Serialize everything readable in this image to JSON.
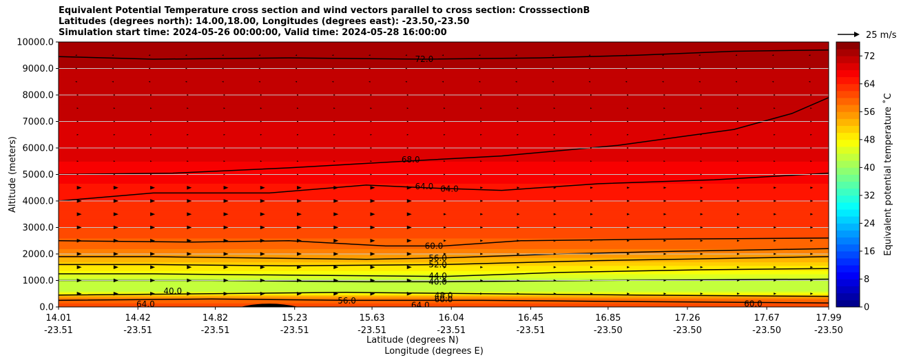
{
  "title": {
    "line1": "Equivalent Potential Temperature cross section and wind vectors parallel to cross section: CrosssectionB",
    "line2": "Latitudes (degrees north): 14.00,18.00, Longitudes (degrees east): -23.50,-23.50",
    "line3": "Simulation start time: 2024-05-26 00:00:00, Valid time: 2024-05-28 16:00:00"
  },
  "chart_data": {
    "type": "heatmap",
    "description_type": "filled contour cross section with wind vectors",
    "ylabel": "Altitude (meters)",
    "xlabel_lat": "Latitude (degrees N)",
    "xlabel_lon": "Longitude (degrees E)",
    "ylim": [
      0,
      10000
    ],
    "xlim": [
      14.01,
      17.99
    ],
    "yticks": [
      "0.0",
      "1000.0",
      "2000.0",
      "3000.0",
      "4000.0",
      "5000.0",
      "6000.0",
      "7000.0",
      "8000.0",
      "9000.0",
      "10000.0"
    ],
    "ytick_values": [
      0,
      1000,
      2000,
      3000,
      4000,
      5000,
      6000,
      7000,
      8000,
      9000,
      10000
    ],
    "xtick_values": [
      14.01,
      14.42,
      14.82,
      15.23,
      15.63,
      16.04,
      16.45,
      16.85,
      17.26,
      17.67,
      17.99
    ],
    "xticks_lat": [
      "14.01",
      "14.42",
      "14.82",
      "15.23",
      "15.63",
      "16.04",
      "16.45",
      "16.85",
      "17.26",
      "17.67",
      "17.99"
    ],
    "xticks_lon": [
      "-23.51",
      "-23.51",
      "-23.51",
      "-23.51",
      "-23.51",
      "-23.51",
      "-23.51",
      "-23.50",
      "-23.50",
      "-23.50",
      "-23.50"
    ],
    "grid": "horizontal",
    "colorbar": {
      "label": "Equivalent potential temperature ˚C",
      "range": [
        0,
        76
      ],
      "tick_values": [
        0,
        8,
        16,
        24,
        32,
        40,
        48,
        56,
        64,
        72
      ],
      "ticks": [
        "0",
        "8",
        "16",
        "24",
        "32",
        "40",
        "48",
        "56",
        "64",
        "72"
      ],
      "colormap": "jet"
    },
    "quiver_key": "25 m/s",
    "theta_e_profile": [
      {
        "z": 0,
        "value": 62
      },
      {
        "z": 300,
        "value": 58
      },
      {
        "z": 600,
        "value": 44
      },
      {
        "z": 1000,
        "value": 42
      },
      {
        "z": 1300,
        "value": 47
      },
      {
        "z": 1700,
        "value": 52
      },
      {
        "z": 2200,
        "value": 58
      },
      {
        "z": 3000,
        "value": 62
      },
      {
        "z": 4000,
        "value": 64
      },
      {
        "z": 5000,
        "value": 67
      },
      {
        "z": 6000,
        "value": 69
      },
      {
        "z": 7000,
        "value": 70
      },
      {
        "z": 8000,
        "value": 70
      },
      {
        "z": 9000,
        "value": 72
      },
      {
        "z": 10000,
        "value": 74
      }
    ],
    "contours": [
      {
        "label": "72.0",
        "points": [
          [
            14.01,
            9450
          ],
          [
            14.5,
            9350
          ],
          [
            15.2,
            9400
          ],
          [
            15.9,
            9350
          ],
          [
            16.5,
            9400
          ],
          [
            17.0,
            9500
          ],
          [
            17.5,
            9650
          ],
          [
            17.99,
            9700
          ]
        ]
      },
      {
        "label": "68.0",
        "points": [
          [
            14.01,
            5000
          ],
          [
            14.6,
            5050
          ],
          [
            15.2,
            5250
          ],
          [
            15.8,
            5500
          ],
          [
            16.3,
            5700
          ],
          [
            16.9,
            6100
          ],
          [
            17.5,
            6700
          ],
          [
            17.8,
            7300
          ],
          [
            17.99,
            7900
          ]
        ]
      },
      {
        "label": "64.0",
        "points": [
          [
            14.01,
            4000
          ],
          [
            14.5,
            4300
          ],
          [
            15.1,
            4300
          ],
          [
            15.6,
            4600
          ],
          [
            15.9,
            4500
          ],
          [
            16.3,
            4400
          ],
          [
            16.8,
            4650
          ],
          [
            17.4,
            4800
          ],
          [
            17.99,
            5050
          ]
        ]
      },
      {
        "label": "60.0",
        "points": [
          [
            14.01,
            2500
          ],
          [
            14.7,
            2450
          ],
          [
            15.2,
            2500
          ],
          [
            15.7,
            2300
          ],
          [
            16.0,
            2300
          ],
          [
            16.4,
            2500
          ],
          [
            17.0,
            2550
          ],
          [
            17.99,
            2600
          ]
        ]
      },
      {
        "label": "56.0",
        "points": [
          [
            14.01,
            1900
          ],
          [
            14.5,
            1900
          ],
          [
            15.0,
            1850
          ],
          [
            15.6,
            1800
          ],
          [
            16.0,
            1850
          ],
          [
            16.6,
            2000
          ],
          [
            17.2,
            2100
          ],
          [
            17.99,
            2200
          ]
        ]
      },
      {
        "label": "52.0",
        "points": [
          [
            14.01,
            1600
          ],
          [
            14.5,
            1600
          ],
          [
            15.2,
            1550
          ],
          [
            16.0,
            1600
          ],
          [
            16.8,
            1750
          ],
          [
            17.99,
            1900
          ]
        ]
      },
      {
        "label": "44.0",
        "points": [
          [
            14.01,
            1250
          ],
          [
            14.5,
            1250
          ],
          [
            15.2,
            1200
          ],
          [
            16.0,
            1150
          ],
          [
            16.6,
            1300
          ],
          [
            17.3,
            1400
          ],
          [
            17.99,
            1450
          ]
        ]
      },
      {
        "label": "40.0",
        "points": [
          [
            14.01,
            1000
          ],
          [
            14.8,
            1000
          ],
          [
            15.6,
            950
          ],
          [
            16.0,
            950
          ],
          [
            16.8,
            1000
          ],
          [
            17.99,
            1050
          ]
        ]
      },
      {
        "label": "48.0",
        "points": [
          [
            14.01,
            450
          ],
          [
            14.8,
            500
          ],
          [
            15.5,
            550
          ],
          [
            16.2,
            500
          ],
          [
            17.0,
            450
          ],
          [
            17.99,
            400
          ]
        ]
      },
      {
        "label": "60.0",
        "points": [
          [
            14.01,
            250
          ],
          [
            14.8,
            300
          ],
          [
            15.5,
            250
          ],
          [
            16.2,
            250
          ],
          [
            17.0,
            200
          ],
          [
            17.99,
            150
          ]
        ]
      }
    ],
    "inline_labels": [
      "72.0",
      "72.0",
      "72.0",
      "68.0",
      "64.0",
      "64.0",
      "60.0",
      "56.0",
      "52.0",
      "44.0",
      "40.0",
      "40.0",
      "40.0",
      "48.0",
      "60.0",
      "64.0",
      "56.0",
      "64.0",
      "60.0",
      "60.0"
    ]
  }
}
